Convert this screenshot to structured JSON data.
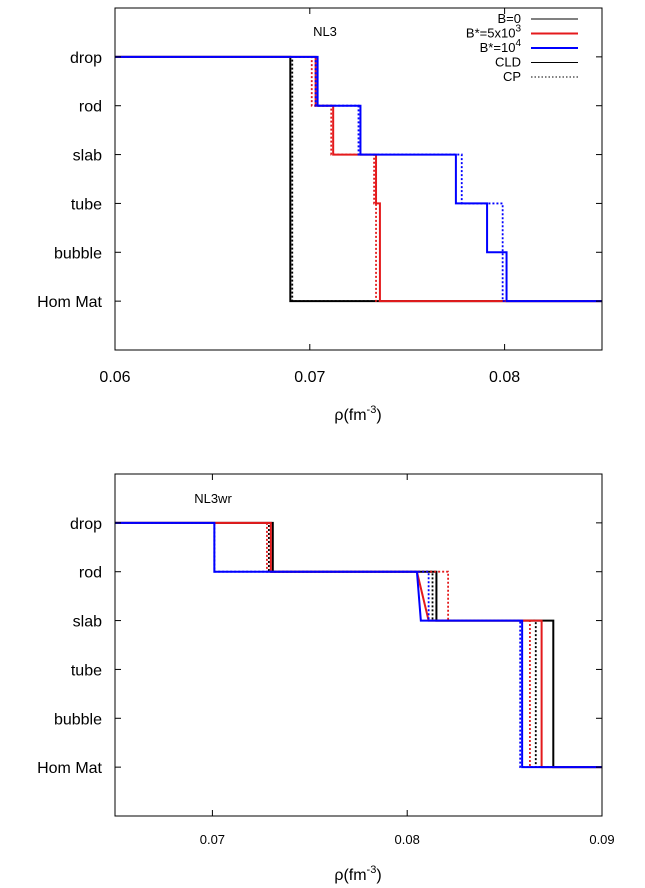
{
  "chart_data": [
    {
      "type": "line",
      "title": "NL3",
      "xlabel": "ρ(fm",
      "xlabel_sup": "-3",
      "xlabel_close": ")",
      "xlim": [
        0.06,
        0.085
      ],
      "xticks": [
        0.06,
        0.07,
        0.08
      ],
      "xtick_labels": [
        "0.06",
        "0.07",
        "0.08"
      ],
      "ylim": [
        -1,
        6
      ],
      "ytick_labels": [
        "Hom Mat",
        "bubble",
        "tube",
        "slab",
        "rod",
        "drop"
      ],
      "grid": false,
      "legend": "top-right",
      "legend_entries": [
        {
          "label": "B=0",
          "sup": "",
          "color": "#000000",
          "dash": "solid"
        },
        {
          "label": "B*=5x10",
          "sup": "3",
          "color": "#e41a1c",
          "dash": "solid"
        },
        {
          "label": "B*=10",
          "sup": "4",
          "color": "#0000ff",
          "dash": "solid"
        },
        {
          "label": "CLD",
          "sup": "",
          "color": "#000000",
          "dash": "solid"
        },
        {
          "label": "CP",
          "sup": "",
          "color": "#000000",
          "dash": "dotted"
        }
      ],
      "series": [
        {
          "name": "B=0",
          "color": "#000000",
          "dash": "solid",
          "points": [
            [
              0.06,
              5
            ],
            [
              0.069,
              5
            ],
            [
              0.069,
              0
            ],
            [
              0.085,
              0
            ]
          ]
        },
        {
          "name": "B=0",
          "color": "#000000",
          "dash": "dotted",
          "points": [
            [
              0.06,
              5
            ],
            [
              0.0691,
              5
            ],
            [
              0.0691,
              0
            ],
            [
              0.085,
              0
            ]
          ]
        },
        {
          "name": "B*=5x10^3",
          "color": "#e41a1c",
          "dash": "solid",
          "points": [
            [
              0.06,
              5
            ],
            [
              0.0703,
              5
            ],
            [
              0.0703,
              4
            ],
            [
              0.0712,
              4
            ],
            [
              0.0712,
              3
            ],
            [
              0.0734,
              3
            ],
            [
              0.0734,
              2
            ],
            [
              0.0736,
              2
            ],
            [
              0.0736,
              0
            ],
            [
              0.085,
              0
            ]
          ]
        },
        {
          "name": "B*=5x10^3",
          "color": "#e41a1c",
          "dash": "dotted",
          "points": [
            [
              0.06,
              5
            ],
            [
              0.0701,
              5
            ],
            [
              0.0701,
              4
            ],
            [
              0.0711,
              4
            ],
            [
              0.0711,
              3
            ],
            [
              0.0733,
              3
            ],
            [
              0.0733,
              2
            ],
            [
              0.0734,
              2
            ],
            [
              0.0734,
              0
            ],
            [
              0.085,
              0
            ]
          ]
        },
        {
          "name": "B*=10^4",
          "color": "#0000ff",
          "dash": "solid",
          "points": [
            [
              0.06,
              5
            ],
            [
              0.0704,
              5
            ],
            [
              0.0704,
              4
            ],
            [
              0.0726,
              4
            ],
            [
              0.0726,
              3
            ],
            [
              0.0775,
              3
            ],
            [
              0.0775,
              2
            ],
            [
              0.0791,
              2
            ],
            [
              0.0791,
              1
            ],
            [
              0.0801,
              1
            ],
            [
              0.0801,
              0
            ],
            [
              0.085,
              0
            ]
          ]
        },
        {
          "name": "B*=10^4",
          "color": "#0000ff",
          "dash": "dotted",
          "points": [
            [
              0.06,
              5
            ],
            [
              0.0703,
              5
            ],
            [
              0.0703,
              4
            ],
            [
              0.0725,
              4
            ],
            [
              0.0725,
              3
            ],
            [
              0.0778,
              3
            ],
            [
              0.0778,
              2
            ],
            [
              0.0799,
              2
            ],
            [
              0.0799,
              0
            ],
            [
              0.085,
              0
            ]
          ]
        }
      ]
    },
    {
      "type": "line",
      "title": "NL3wr",
      "xlabel": "ρ(fm",
      "xlabel_sup": "-3",
      "xlabel_close": ")",
      "xlim": [
        0.065,
        0.09
      ],
      "xticks": [
        0.07,
        0.08,
        0.09
      ],
      "xtick_labels": [
        "0.07",
        "0.08",
        "0.09"
      ],
      "ylim": [
        -1,
        6
      ],
      "ytick_labels": [
        "Hom Mat",
        "bubble",
        "tube",
        "slab",
        "rod",
        "drop"
      ],
      "grid": false,
      "series": [
        {
          "name": "B=0",
          "color": "#000000",
          "dash": "solid",
          "points": [
            [
              0.065,
              5
            ],
            [
              0.0731,
              5
            ],
            [
              0.0731,
              4
            ],
            [
              0.0815,
              4
            ],
            [
              0.0815,
              3
            ],
            [
              0.0875,
              3
            ],
            [
              0.0875,
              0
            ],
            [
              0.09,
              0
            ]
          ]
        },
        {
          "name": "B=0",
          "color": "#000000",
          "dash": "dotted",
          "points": [
            [
              0.065,
              5
            ],
            [
              0.0729,
              5
            ],
            [
              0.0729,
              4
            ],
            [
              0.0813,
              4
            ],
            [
              0.0813,
              3
            ],
            [
              0.0866,
              3
            ],
            [
              0.0866,
              0
            ],
            [
              0.09,
              0
            ]
          ]
        },
        {
          "name": "B*=5x10^3",
          "color": "#e41a1c",
          "dash": "solid",
          "points": [
            [
              0.065,
              5
            ],
            [
              0.073,
              5
            ],
            [
              0.073,
              4
            ],
            [
              0.0805,
              4
            ],
            [
              0.0811,
              3
            ],
            [
              0.0869,
              3
            ],
            [
              0.0869,
              0
            ],
            [
              0.09,
              0
            ]
          ]
        },
        {
          "name": "B*=5x10^3",
          "color": "#e41a1c",
          "dash": "dotted",
          "points": [
            [
              0.065,
              5
            ],
            [
              0.0728,
              5
            ],
            [
              0.0728,
              4
            ],
            [
              0.0821,
              4
            ],
            [
              0.0821,
              3
            ],
            [
              0.0863,
              3
            ],
            [
              0.0863,
              0
            ],
            [
              0.09,
              0
            ]
          ]
        },
        {
          "name": "B*=10^4",
          "color": "#0000ff",
          "dash": "solid",
          "points": [
            [
              0.065,
              5
            ],
            [
              0.0701,
              5
            ],
            [
              0.0701,
              4
            ],
            [
              0.0805,
              4
            ],
            [
              0.0807,
              3
            ],
            [
              0.0859,
              3
            ],
            [
              0.0859,
              0
            ],
            [
              0.09,
              0
            ]
          ]
        },
        {
          "name": "B*=10^4",
          "color": "#0000ff",
          "dash": "dotted",
          "points": [
            [
              0.065,
              5
            ],
            [
              0.0701,
              5
            ],
            [
              0.0701,
              4
            ],
            [
              0.0811,
              4
            ],
            [
              0.0811,
              3
            ],
            [
              0.0858,
              3
            ],
            [
              0.0858,
              0
            ],
            [
              0.09,
              0
            ]
          ]
        }
      ]
    }
  ]
}
